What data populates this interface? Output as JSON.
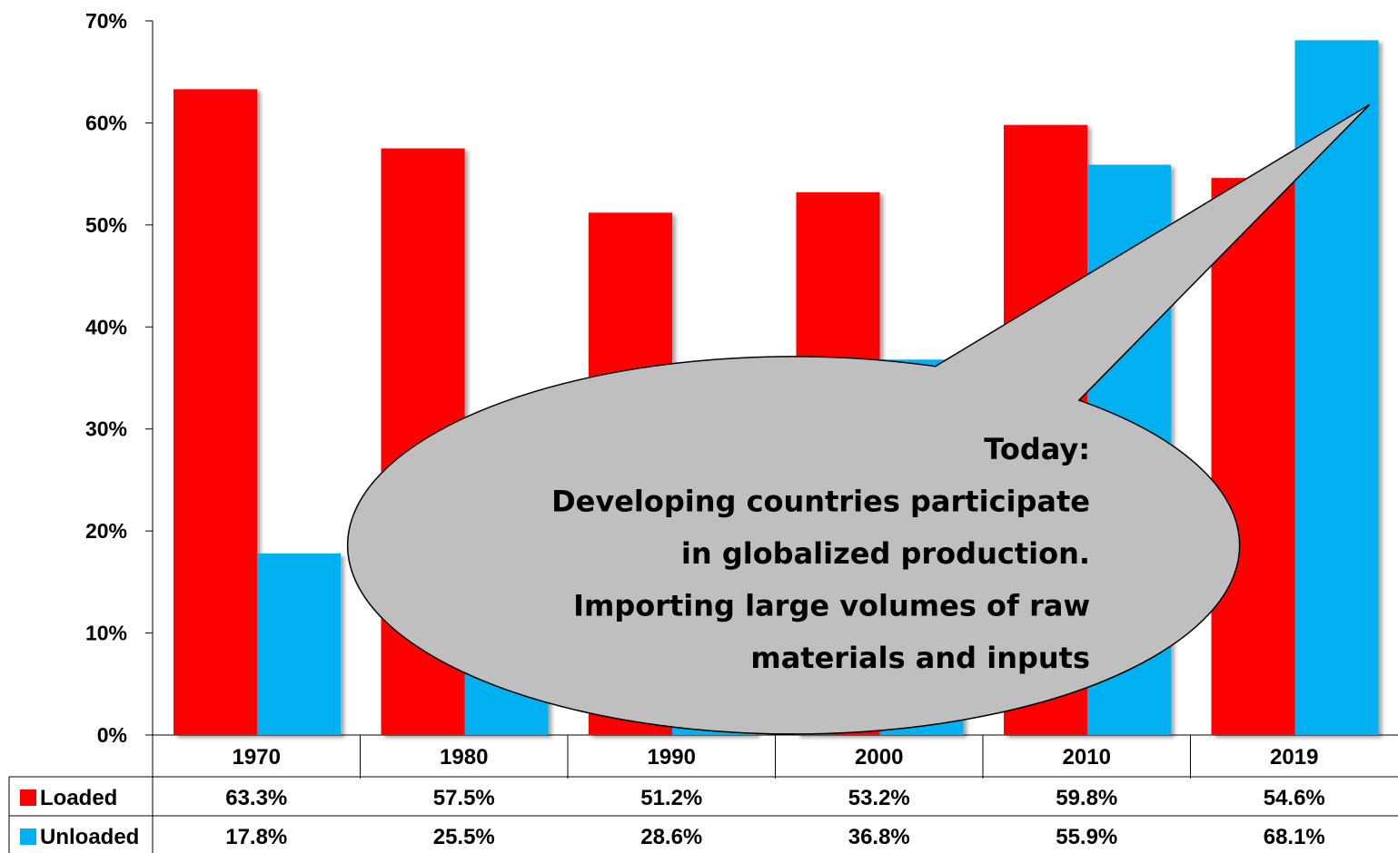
{
  "chart_data": {
    "type": "bar",
    "categories": [
      "1970",
      "1980",
      "1990",
      "2000",
      "2010",
      "2019"
    ],
    "series": [
      {
        "name": "Loaded",
        "values": [
          63.3,
          57.5,
          51.2,
          53.2,
          59.8,
          54.6
        ],
        "labels": [
          "63.3%",
          "57.5%",
          "51.2%",
          "53.2%",
          "59.8%",
          "54.6%"
        ],
        "color": "#ff0000"
      },
      {
        "name": "Unloaded",
        "values": [
          17.8,
          25.5,
          28.6,
          36.8,
          55.9,
          68.1
        ],
        "labels": [
          "17.8%",
          "25.5%",
          "28.6%",
          "36.8%",
          "55.9%",
          "68.1%"
        ],
        "color": "#00b0f0"
      }
    ],
    "ylim": [
      0,
      70
    ],
    "yticks": [
      "0%",
      "10%",
      "20%",
      "30%",
      "40%",
      "50%",
      "60%",
      "70%"
    ],
    "grid": false,
    "legend": "data-table"
  },
  "callout": {
    "lines": [
      "Today:",
      "Developing countries participate",
      "in globalized production.",
      "Importing large volumes of raw",
      "materials and inputs"
    ],
    "fill": "#bfbfbf"
  }
}
